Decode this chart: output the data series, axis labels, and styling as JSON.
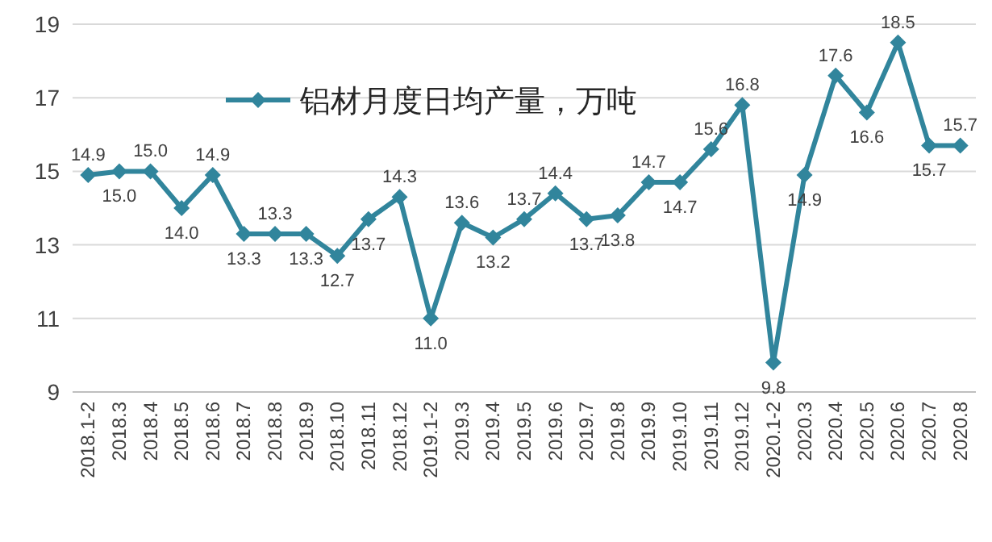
{
  "chart_data": {
    "type": "line",
    "categories": [
      "2018.1-2",
      "2018.3",
      "2018.4",
      "2018.5",
      "2018.6",
      "2018.7",
      "2018.8",
      "2018.9",
      "2018.10",
      "2018.11",
      "2018.12",
      "2019.1-2",
      "2019.3",
      "2019.4",
      "2019.5",
      "2019.6",
      "2019.7",
      "2019.8",
      "2019.9",
      "2019.10",
      "2019.11",
      "2019.12",
      "2020.1-2",
      "2020.3",
      "2020.4",
      "2020.5",
      "2020.6",
      "2020.7",
      "2020.8"
    ],
    "series": [
      {
        "name": "铝材月度日均产量，万吨",
        "color": "#31859c",
        "values": [
          14.9,
          15.0,
          15.0,
          14.0,
          14.9,
          13.3,
          13.3,
          13.3,
          12.7,
          13.7,
          14.3,
          11.0,
          13.6,
          13.2,
          13.7,
          14.4,
          13.7,
          13.8,
          14.7,
          14.7,
          15.6,
          16.8,
          9.8,
          14.9,
          17.6,
          16.6,
          18.5,
          15.7,
          15.7
        ],
        "value_labels": [
          "14.9",
          "15.0",
          "15.0",
          "14.0",
          "14.9",
          "13.3",
          "13.3",
          "13.3",
          "12.7",
          "13.7",
          "14.3",
          "11.0",
          "13.6",
          "13.2",
          "13.7",
          "14.4",
          "13.7",
          "13.8",
          "14.7",
          "14.7",
          "15.6",
          "16.8",
          "9.8",
          "14.9",
          "17.6",
          "16.6",
          "18.5",
          "15.7",
          "15.7"
        ]
      }
    ],
    "ylim": [
      9,
      19
    ],
    "yticks": [
      9,
      11,
      13,
      15,
      17,
      19
    ],
    "grid": "y",
    "legend": "top left",
    "marker": "diamond",
    "line_style": "solid"
  }
}
